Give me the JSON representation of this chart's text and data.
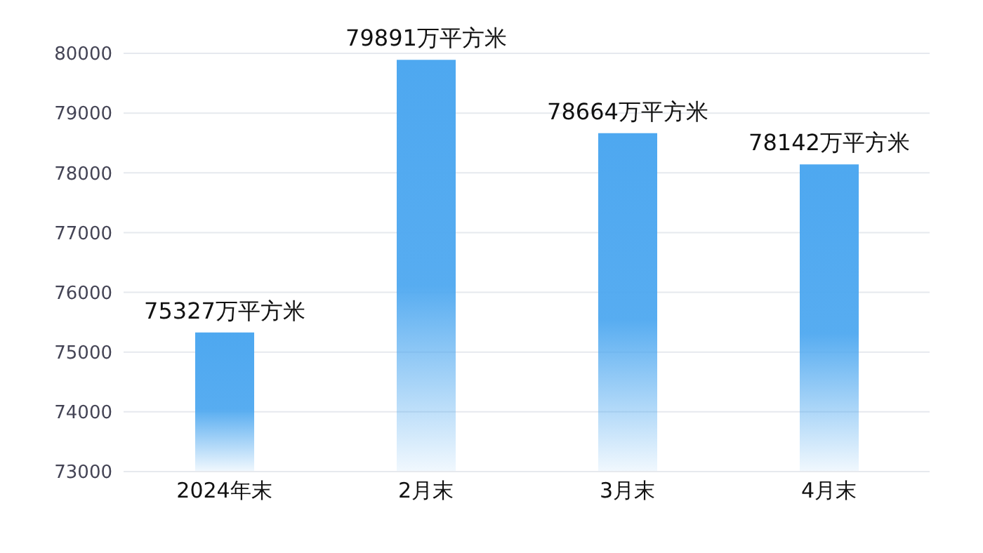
{
  "chart_data": {
    "type": "bar",
    "categories": [
      "2024年末",
      "2月末",
      "3月末",
      "4月末"
    ],
    "values": [
      75327,
      79891,
      78664,
      78142
    ],
    "value_labels": [
      "75327万平方米",
      "79891万平方米",
      "78664万平方米",
      "78142万平方米"
    ],
    "color": "#4ea8f0",
    "ylim": [
      73000,
      80000
    ],
    "yticks": [
      73000,
      74000,
      75000,
      76000,
      77000,
      78000,
      79000,
      80000
    ],
    "grid": "y"
  }
}
